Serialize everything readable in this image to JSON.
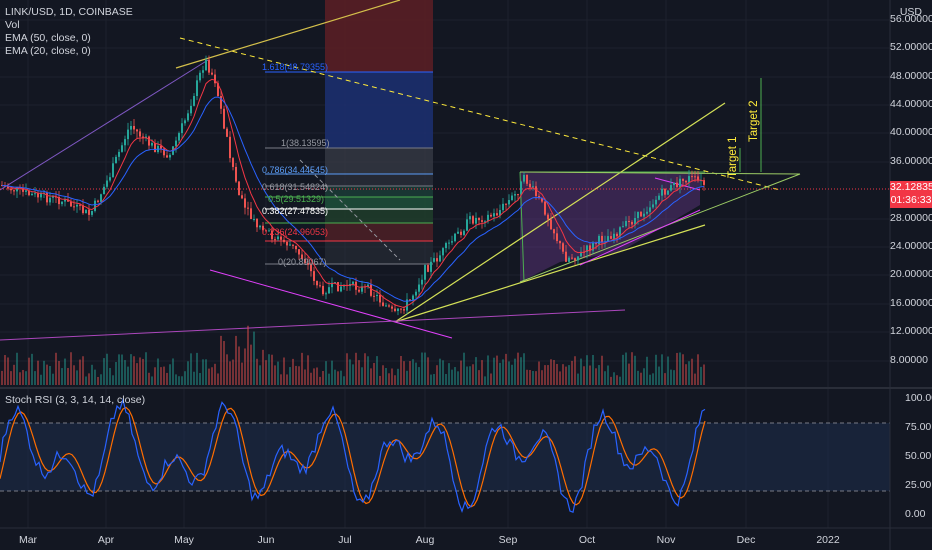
{
  "legend": {
    "symbol": "LINK/USD, 1D, COINBASE",
    "vol": "Vol",
    "ema50": "EMA (50, close, 0)",
    "ema20": "EMA (20, close, 0)"
  },
  "rsi_legend": "Stoch RSI (3, 3, 14, 14, close)",
  "currency": "USD",
  "last_price": {
    "value": "32.12835",
    "countdown": "01:36:33",
    "color": "#f23645"
  },
  "price_axis": [
    "56.00000",
    "52.00000",
    "48.00000",
    "44.00000",
    "40.00000",
    "36.00000",
    "28.00000",
    "24.00000",
    "20.00000",
    "16.00000",
    "12.00000",
    "8.00000"
  ],
  "rsi_axis": [
    "100.00",
    "75.00",
    "50.00",
    "25.00",
    "0.00"
  ],
  "time_axis": [
    "Mar",
    "Apr",
    "May",
    "Jun",
    "Jul",
    "Aug",
    "Sep",
    "Oct",
    "Nov",
    "Dec",
    "2022"
  ],
  "fib_levels": [
    {
      "label": "1.618(48.79355)",
      "color": "#2962ff"
    },
    {
      "label": "1(38.13595)",
      "color": "#9598a1"
    },
    {
      "label": "0.786(34.44545)",
      "color": "#5b9cf6"
    },
    {
      "label": "0.618(31.54824)",
      "color": "#9598a1"
    },
    {
      "label": "0.5(29.51329)",
      "color": "#4caf50"
    },
    {
      "label": "0.382(27.47835)",
      "color": "#ffffff"
    },
    {
      "label": "0.236(24.96053)",
      "color": "#f23645"
    },
    {
      "label": "0(20.89067)",
      "color": "#9598a1"
    }
  ],
  "targets": [
    "Target 1",
    "Target 2"
  ],
  "colors": {
    "up": "#26a69a",
    "down": "#ef5350",
    "background": "#131722",
    "accent": "#2962ff",
    "ema20": "#f23645",
    "ema50": "#2962ff",
    "rsi_k": "#2962ff",
    "rsi_d": "#ff6d00",
    "target": "#ffeb3b"
  }
}
